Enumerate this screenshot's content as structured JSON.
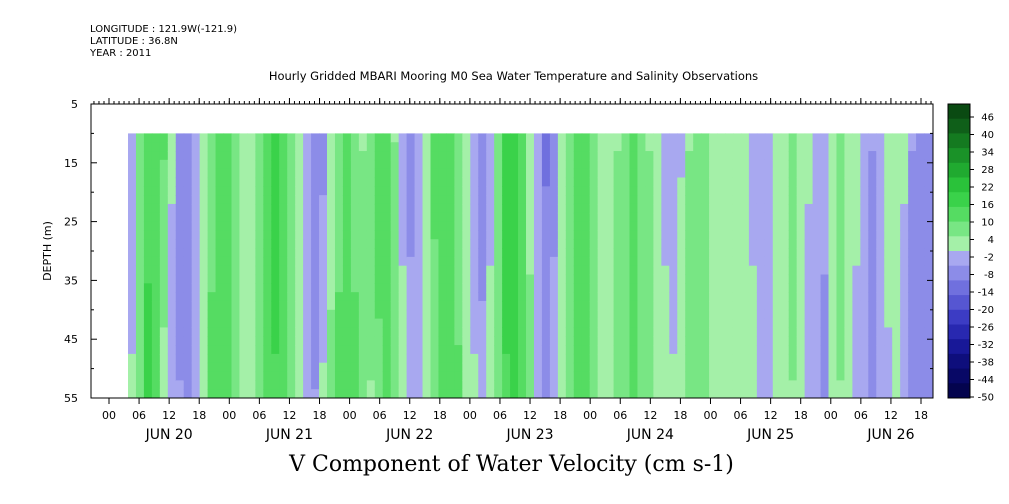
{
  "meta": {
    "longitude": "LONGITUDE : 121.9W(-121.9)",
    "latitude": "LATITUDE : 36.8N",
    "year": "YEAR : 2011"
  },
  "chart_data": {
    "type": "heatmap",
    "title": "Hourly Gridded MBARI Mooring M0 Sea Water Temperature and Salinity Observations",
    "variable_title": "V Component of Water Velocity (cm s-1)",
    "ylabel": "DEPTH (m)",
    "y_reversed": true,
    "ylim": [
      5,
      55
    ],
    "y_ticks": [
      5,
      15,
      25,
      35,
      45,
      55
    ],
    "data_depth_range": [
      10,
      55
    ],
    "x_hour_ticks": [
      "00",
      "06",
      "12",
      "18",
      "00",
      "06",
      "12",
      "18",
      "00",
      "06",
      "12",
      "18",
      "00",
      "06",
      "12",
      "18",
      "00",
      "06",
      "12",
      "18",
      "00",
      "06",
      "12",
      "18",
      "00",
      "06",
      "12",
      "18"
    ],
    "x_dates": [
      "JUN 20",
      "JUN 21",
      "JUN 22",
      "JUN 23",
      "JUN 24",
      "JUN 25",
      "JUN 26"
    ],
    "colorbar": {
      "labels": [
        "46",
        "40",
        "34",
        "28",
        "22",
        "16",
        "10",
        "4",
        "-2",
        "-8",
        "-14",
        "-20",
        "-26",
        "-32",
        "-38",
        "-44",
        "-50"
      ],
      "min": -50,
      "max": 52,
      "colors": [
        "#0a4a12",
        "#0f5f19",
        "#147a20",
        "#1a9228",
        "#20aa30",
        "#2ac23a",
        "#3ad24a",
        "#55dc62",
        "#78e684",
        "#a4f0a8",
        "#a8a8f0",
        "#8c8ce8",
        "#7070de",
        "#5656d2",
        "#3c3cc4",
        "#2828b0",
        "#181898",
        "#0e0e7c",
        "#080866",
        "#04044e"
      ]
    },
    "time_columns_velocity": [
      [
        -4,
        2
      ],
      [
        8,
        10
      ],
      [
        14,
        18
      ],
      [
        16,
        12
      ],
      [
        12,
        4
      ],
      [
        2,
        -2
      ],
      [
        -6,
        -4
      ],
      [
        -8,
        -6
      ],
      [
        -4,
        -2
      ],
      [
        4,
        6
      ],
      [
        10,
        12
      ],
      [
        14,
        16
      ],
      [
        12,
        14
      ],
      [
        8,
        10
      ],
      [
        4,
        6
      ],
      [
        2,
        4
      ],
      [
        8,
        10
      ],
      [
        14,
        12
      ],
      [
        18,
        16
      ],
      [
        16,
        14
      ],
      [
        10,
        8
      ],
      [
        2,
        4
      ],
      [
        -4,
        -2
      ],
      [
        -8,
        -4
      ],
      [
        -6,
        2
      ],
      [
        2,
        8
      ],
      [
        10,
        12
      ],
      [
        14,
        14
      ],
      [
        10,
        12
      ],
      [
        6,
        8
      ],
      [
        8,
        6
      ],
      [
        14,
        10
      ],
      [
        12,
        14
      ],
      [
        6,
        10
      ],
      [
        -2,
        4
      ],
      [
        -6,
        -2
      ],
      [
        -4,
        0
      ],
      [
        4,
        6
      ],
      [
        12,
        10
      ],
      [
        16,
        14
      ],
      [
        14,
        16
      ],
      [
        8,
        12
      ],
      [
        2,
        6
      ],
      [
        -4,
        2
      ],
      [
        -8,
        -2
      ],
      [
        -2,
        4
      ],
      [
        10,
        10
      ],
      [
        18,
        16
      ],
      [
        20,
        18
      ],
      [
        14,
        16
      ],
      [
        4,
        8
      ],
      [
        -4,
        0
      ],
      [
        -10,
        -6
      ],
      [
        -6,
        -2
      ],
      [
        2,
        4
      ],
      [
        10,
        8
      ],
      [
        14,
        12
      ],
      [
        12,
        12
      ],
      [
        8,
        10
      ],
      [
        4,
        6
      ],
      [
        2,
        6
      ],
      [
        6,
        8
      ],
      [
        10,
        10
      ],
      [
        12,
        12
      ],
      [
        10,
        10
      ],
      [
        6,
        8
      ],
      [
        2,
        6
      ],
      [
        -2,
        4
      ],
      [
        -4,
        2
      ],
      [
        0,
        6
      ],
      [
        6,
        8
      ],
      [
        10,
        10
      ],
      [
        8,
        10
      ],
      [
        4,
        6
      ],
      [
        2,
        4
      ],
      [
        4,
        6
      ],
      [
        6,
        6
      ],
      [
        4,
        4
      ],
      [
        0,
        2
      ],
      [
        -4,
        -2
      ],
      [
        -2,
        0
      ],
      [
        4,
        4
      ],
      [
        6,
        6
      ],
      [
        8,
        6
      ],
      [
        6,
        4
      ],
      [
        2,
        -2
      ],
      [
        0,
        -4
      ],
      [
        -2,
        -6
      ],
      [
        4,
        2
      ],
      [
        8,
        6
      ],
      [
        6,
        4
      ],
      [
        2,
        0
      ],
      [
        -2,
        -4
      ],
      [
        -4,
        -6
      ],
      [
        0,
        -4
      ],
      [
        4,
        0
      ],
      [
        6,
        2
      ],
      [
        2,
        -2
      ],
      [
        -4,
        -6
      ],
      [
        -8,
        -8
      ],
      [
        -6,
        -6
      ]
    ]
  }
}
